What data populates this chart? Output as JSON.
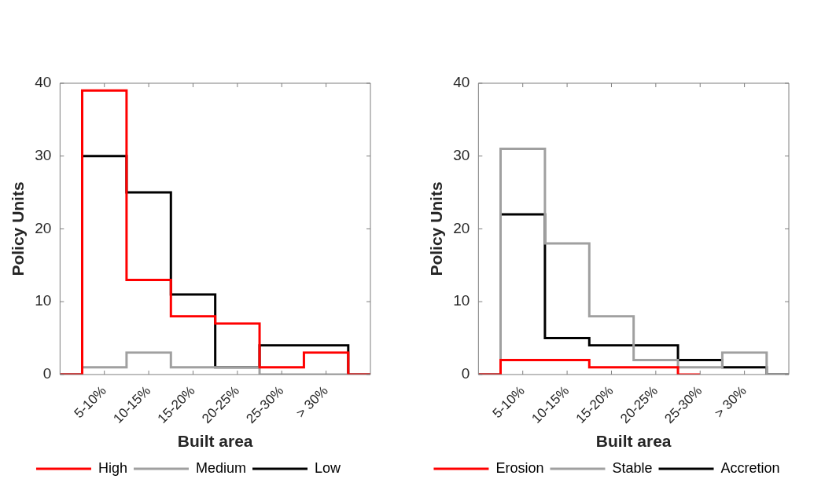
{
  "chart_data": [
    {
      "type": "step",
      "xlabel": "Built area",
      "ylabel": "Policy Units",
      "categories": [
        null,
        "5-10%",
        "10-15%",
        "15-20%",
        "20-25%",
        "25-30%",
        "> 30%",
        null
      ],
      "ylim": [
        0,
        40
      ],
      "yticks": [
        0,
        10,
        20,
        30,
        40
      ],
      "legend": "bottom",
      "series": [
        {
          "name": "High",
          "color": "#ff0000",
          "values": [
            0,
            39,
            13,
            8,
            7,
            1,
            3,
            0
          ]
        },
        {
          "name": "Medium",
          "color": "#a0a0a0",
          "values": [
            0,
            1,
            3,
            1,
            1,
            0,
            0,
            0
          ]
        },
        {
          "name": "Low",
          "color": "#000000",
          "values": [
            0,
            30,
            25,
            11,
            1,
            4,
            4,
            0
          ]
        }
      ]
    },
    {
      "type": "step",
      "xlabel": "Built area",
      "ylabel": "Policy Units",
      "categories": [
        null,
        "5-10%",
        "10-15%",
        "15-20%",
        "20-25%",
        "25-30%",
        "> 30%",
        null
      ],
      "ylim": [
        0,
        40
      ],
      "yticks": [
        0,
        10,
        20,
        30,
        40
      ],
      "legend": "bottom",
      "series": [
        {
          "name": "Erosion",
          "color": "#ff0000",
          "values": [
            0,
            2,
            2,
            1,
            1,
            0,
            null,
            null
          ]
        },
        {
          "name": "Stable",
          "color": "#a0a0a0",
          "values": [
            0,
            31,
            18,
            8,
            2,
            1,
            3,
            0
          ]
        },
        {
          "name": "Accretion",
          "color": "#000000",
          "values": [
            0,
            22,
            5,
            4,
            4,
            2,
            1,
            0
          ]
        }
      ]
    }
  ]
}
